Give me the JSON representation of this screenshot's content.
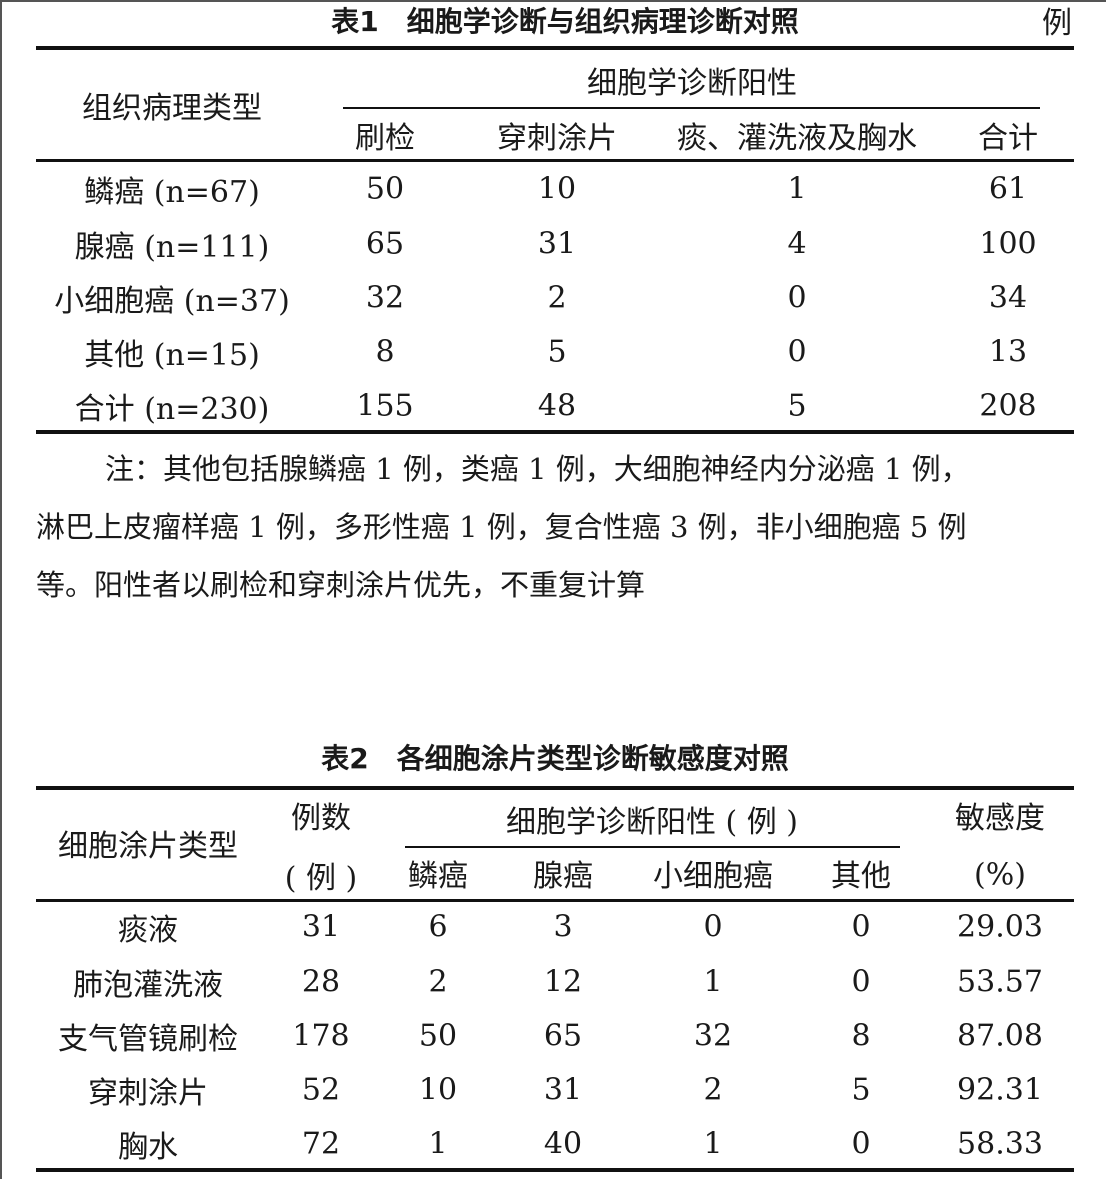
{
  "table1": {
    "title": "表1　细胞学诊断与组织病理诊断对照",
    "unit": "例",
    "row_header": "组织病理类型",
    "group_header": "细胞学诊断阳性",
    "columns": [
      "刷检",
      "穿刺涂片",
      "痰、灌洗液及胸水",
      "合计"
    ],
    "rows": [
      [
        "鳞癌 (n=67)",
        "50",
        "10",
        "1",
        "61"
      ],
      [
        "腺癌 (n=111)",
        "65",
        "31",
        "4",
        "100"
      ],
      [
        "小细胞癌 (n=37)",
        "32",
        "2",
        "0",
        "34"
      ],
      [
        "其他 (n=15)",
        "8",
        "5",
        "0",
        "13"
      ],
      [
        "合计 (n=230)",
        "155",
        "48",
        "5",
        "208"
      ]
    ],
    "note": [
      "注：其他包括腺鳞癌 1 例，类癌 1 例，大细胞神经内分泌癌 1 例，",
      "淋巴上皮瘤样癌 1 例，多形性癌 1 例，复合性癌 3 例，非小细胞癌 5 例",
      "等。阳性者以刷检和穿刺涂片优先，不重复计算"
    ]
  },
  "table2": {
    "title": "表2　各细胞涂片类型诊断敏感度对照",
    "row_header": "细胞涂片类型",
    "count_header": "例数",
    "count_unit": "( 例 )",
    "group_header": "细胞学诊断阳性 ( 例 )",
    "columns": [
      "鳞癌",
      "腺癌",
      "小细胞癌",
      "其他"
    ],
    "sens_header": "敏感度",
    "sens_unit": "(%)",
    "rows": [
      [
        "痰液",
        "31",
        "6",
        "3",
        "0",
        "0",
        "29.03"
      ],
      [
        "肺泡灌洗液",
        "28",
        "2",
        "12",
        "1",
        "0",
        "53.57"
      ],
      [
        "支气管镜刷检",
        "178",
        "50",
        "65",
        "32",
        "8",
        "87.08"
      ],
      [
        "穿刺涂片",
        "52",
        "10",
        "31",
        "2",
        "5",
        "92.31"
      ],
      [
        "胸水",
        "72",
        "1",
        "40",
        "1",
        "0",
        "58.33"
      ]
    ]
  }
}
